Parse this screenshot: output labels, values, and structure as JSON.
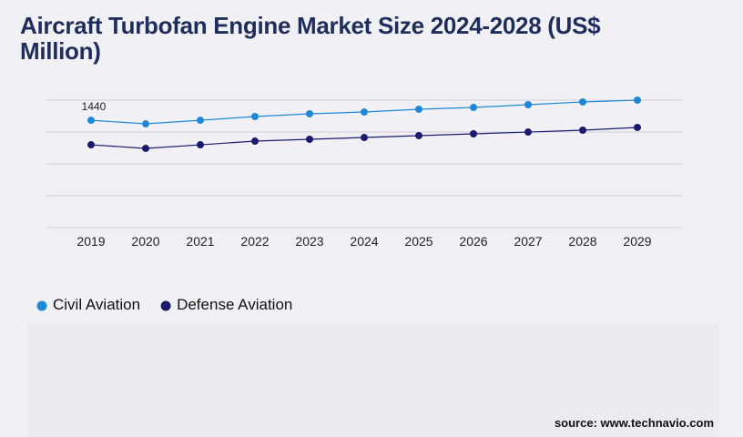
{
  "chart_data": {
    "type": "line",
    "title": "Aircraft Turbofan Engine Market Size 2024-2028 (US$ Million)",
    "x": [
      "2019",
      "2020",
      "2021",
      "2022",
      "2023",
      "2024",
      "2025",
      "2026",
      "2027",
      "2028",
      "2029"
    ],
    "series": [
      {
        "name": "Civil Aviation",
        "color": "#1e88d6",
        "values": [
          1440,
          1392,
          1440,
          1490,
          1527,
          1551,
          1588,
          1612,
          1649,
          1686,
          1710
        ],
        "value_labels": [
          "1440",
          null,
          null,
          null,
          null,
          null,
          null,
          null,
          null,
          null,
          null
        ]
      },
      {
        "name": "Defense Aviation",
        "color": "#1a1a6e",
        "values": [
          1111,
          1063,
          1111,
          1160,
          1185,
          1209,
          1234,
          1258,
          1282,
          1307,
          1344
        ]
      }
    ],
    "ylim": [
      0,
      1710
    ],
    "source": "source: www.technavio.com"
  }
}
